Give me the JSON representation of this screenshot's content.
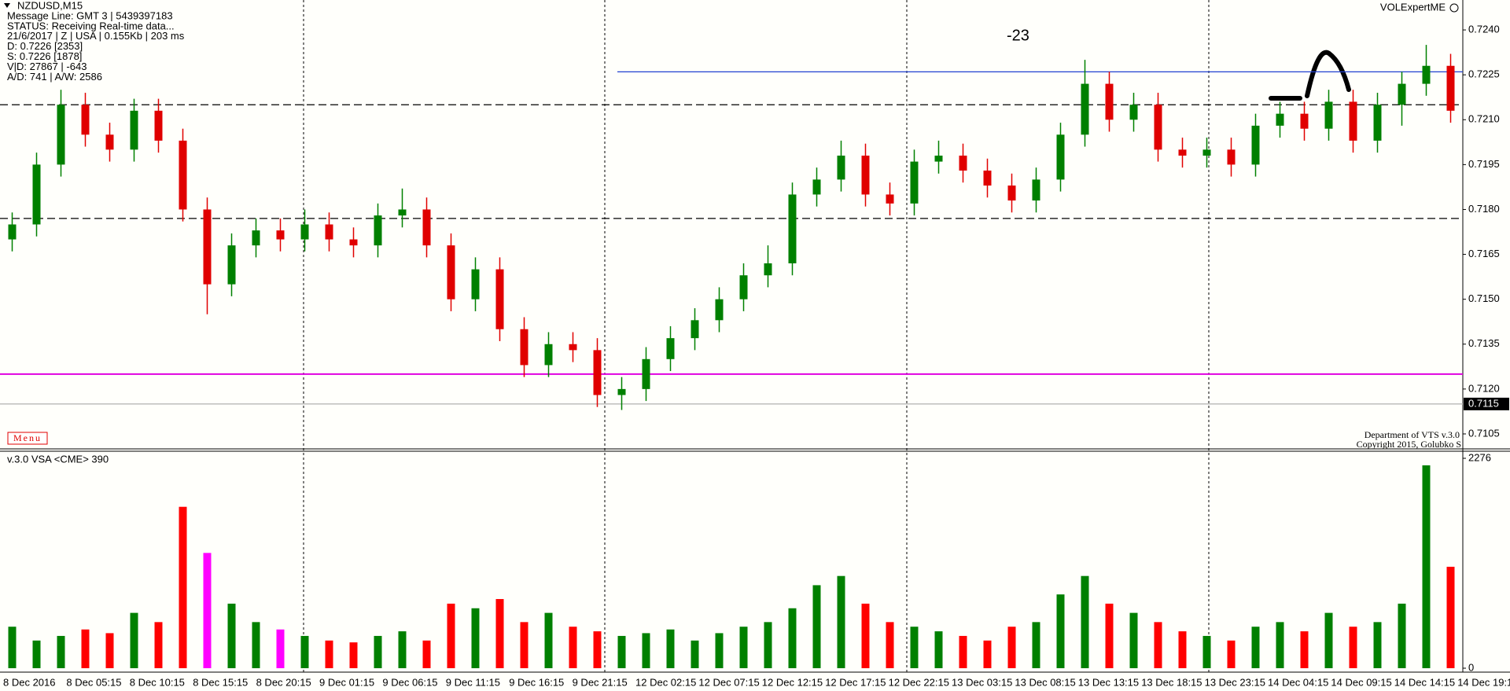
{
  "chart_data": [
    {
      "type": "candlestick",
      "title": "NZDUSD,M15",
      "info_lines": [
        "Message Line: GMT 3 | 5439397183",
        "STATUS:  Receiving Real-time data...",
        "21/6/2017 | Z | USA | 0.155Kb | 203 ms",
        "D: 0.7226  [2353]",
        "S: 0.7226  [1878]",
        "V|D: 27867 | -643",
        "A/D: 741 | A/W: 2586"
      ],
      "annotation": "-23",
      "indicator_name": "VOLExpertME",
      "menu": "Menu",
      "credits": [
        "Department of VTS  v.3.0",
        "Copyright 2015, Golubko S"
      ],
      "up_color": "#008000",
      "down_color": "#e00000",
      "open": [
        0.717,
        0.7175,
        0.7195,
        0.7215,
        0.7205,
        0.72,
        0.7213,
        0.7203,
        0.718,
        0.7155,
        0.7168,
        0.7173,
        0.717,
        0.7175,
        0.717,
        0.7168,
        0.7178,
        0.718,
        0.7168,
        0.715,
        0.716,
        0.714,
        0.7128,
        0.7135,
        0.7133,
        0.7118,
        0.712,
        0.713,
        0.7137,
        0.7143,
        0.715,
        0.7158,
        0.7162,
        0.7185,
        0.719,
        0.7198,
        0.7185,
        0.7182,
        0.7196,
        0.7198,
        0.7193,
        0.7188,
        0.7183,
        0.719,
        0.7205,
        0.7222,
        0.721,
        0.7215,
        0.72,
        0.7198,
        0.72,
        0.7195,
        0.7208,
        0.7212,
        0.7207,
        0.7216,
        0.7203,
        0.7215,
        0.7222,
        0.7228
      ],
      "high": [
        0.7179,
        0.7199,
        0.722,
        0.7219,
        0.7209,
        0.7217,
        0.7217,
        0.7207,
        0.7184,
        0.7172,
        0.7177,
        0.7177,
        0.718,
        0.7179,
        0.7174,
        0.7182,
        0.7187,
        0.7184,
        0.7172,
        0.7164,
        0.7164,
        0.7144,
        0.7139,
        0.7139,
        0.7137,
        0.7124,
        0.7134,
        0.7141,
        0.7147,
        0.7154,
        0.7162,
        0.7168,
        0.7189,
        0.7194,
        0.7203,
        0.7202,
        0.7189,
        0.72,
        0.7203,
        0.7202,
        0.7197,
        0.7192,
        0.7194,
        0.7209,
        0.723,
        0.7226,
        0.7219,
        0.7219,
        0.7204,
        0.7204,
        0.7204,
        0.7212,
        0.7216,
        0.7216,
        0.722,
        0.722,
        0.7219,
        0.7226,
        0.7235,
        0.7232
      ],
      "low": [
        0.7166,
        0.7171,
        0.7191,
        0.7201,
        0.7196,
        0.7196,
        0.7199,
        0.7176,
        0.7145,
        0.7151,
        0.7164,
        0.7166,
        0.7166,
        0.7166,
        0.7164,
        0.7164,
        0.7174,
        0.7164,
        0.7146,
        0.7146,
        0.7136,
        0.7124,
        0.7124,
        0.7129,
        0.7114,
        0.7113,
        0.7116,
        0.7126,
        0.7133,
        0.7139,
        0.7146,
        0.7154,
        0.7158,
        0.7181,
        0.7186,
        0.7181,
        0.7178,
        0.7178,
        0.7192,
        0.7189,
        0.7184,
        0.7179,
        0.7179,
        0.7186,
        0.7201,
        0.7206,
        0.7206,
        0.7196,
        0.7194,
        0.7194,
        0.7191,
        0.7191,
        0.7204,
        0.7203,
        0.7203,
        0.7199,
        0.7199,
        0.7208,
        0.7218,
        0.7209
      ],
      "close": [
        0.7175,
        0.7195,
        0.7215,
        0.7205,
        0.72,
        0.7213,
        0.7203,
        0.718,
        0.7155,
        0.7168,
        0.7173,
        0.717,
        0.7175,
        0.717,
        0.7168,
        0.7178,
        0.718,
        0.7168,
        0.715,
        0.716,
        0.714,
        0.7128,
        0.7135,
        0.7133,
        0.7118,
        0.712,
        0.713,
        0.7137,
        0.7143,
        0.715,
        0.7158,
        0.7162,
        0.7185,
        0.719,
        0.7198,
        0.7185,
        0.7182,
        0.7196,
        0.7198,
        0.7193,
        0.7188,
        0.7183,
        0.719,
        0.7205,
        0.7222,
        0.721,
        0.7215,
        0.72,
        0.7198,
        0.72,
        0.7195,
        0.7208,
        0.7212,
        0.7207,
        0.7216,
        0.7203,
        0.7215,
        0.7222,
        0.7228,
        0.7213
      ],
      "ylim": [
        0.71,
        0.725
      ],
      "yticks": [
        {
          "value": 0.724,
          "label": "0.7240"
        },
        0.7225,
        {
          "value": 0.721,
          "label": "0.7210"
        },
        0.7195,
        {
          "value": 0.718,
          "label": "0.7180"
        },
        0.7165,
        {
          "value": 0.715,
          "label": "0.7150"
        },
        0.7135,
        {
          "value": 0.712,
          "label": "0.7120"
        },
        0.7105
      ],
      "current_price": 0.7115,
      "levels": [
        {
          "value": 0.7226,
          "color": "#2040d0",
          "style": "solid"
        },
        {
          "value": 0.7215,
          "color": "#000000",
          "style": "dashed"
        },
        {
          "value": 0.7177,
          "color": "#000000",
          "style": "dashed"
        },
        {
          "value": 0.7125,
          "color": "#e000e0",
          "style": "solid"
        },
        {
          "value": 0.7115,
          "color": "#b0b0b0",
          "style": "solid"
        }
      ],
      "x_labels": [
        "8 Dec 2016",
        "8 Dec 05:15",
        "8 Dec 10:15",
        "8 Dec 15:15",
        "8 Dec 20:15",
        "9 Dec 01:15",
        "9 Dec 06:15",
        "9 Dec 11:15",
        "9 Dec 16:15",
        "9 Dec 21:15",
        "12 Dec 02:15",
        "12 Dec 07:15",
        "12 Dec 12:15",
        "12 Dec 17:15",
        "12 Dec 22:15",
        "13 Dec 03:15",
        "13 Dec 08:15",
        "13 Dec 13:15",
        "13 Dec 18:15",
        "13 Dec 23:15",
        "14 Dec 04:15",
        "14 Dec 09:15",
        "14 Dec 14:15",
        "14 Dec 19:1"
      ]
    },
    {
      "type": "bar",
      "title": "v.3.0 VSA <CME> 390",
      "values": [
        450,
        300,
        350,
        420,
        380,
        600,
        500,
        1750,
        1250,
        700,
        500,
        420,
        350,
        300,
        280,
        350,
        400,
        300,
        700,
        650,
        750,
        500,
        600,
        450,
        400,
        350,
        380,
        420,
        300,
        380,
        450,
        500,
        650,
        900,
        1000,
        700,
        500,
        450,
        400,
        350,
        300,
        450,
        500,
        800,
        1000,
        700,
        600,
        500,
        400,
        350,
        300,
        450,
        500,
        400,
        600,
        450,
        500,
        700,
        2200,
        1100
      ],
      "colors": [
        "green",
        "green",
        "green",
        "red",
        "red",
        "green",
        "red",
        "red",
        "magenta",
        "green",
        "green",
        "magenta",
        "green",
        "red",
        "red",
        "green",
        "green",
        "red",
        "red",
        "green",
        "red",
        "red",
        "green",
        "red",
        "red",
        "green",
        "green",
        "green",
        "green",
        "green",
        "green",
        "green",
        "green",
        "green",
        "green",
        "red",
        "red",
        "green",
        "green",
        "red",
        "red",
        "red",
        "green",
        "green",
        "green",
        "red",
        "green",
        "red",
        "red",
        "green",
        "red",
        "green",
        "green",
        "red",
        "green",
        "red",
        "green",
        "green",
        "green",
        "red"
      ],
      "ylim": [
        0,
        2276
      ],
      "yticks": [
        0,
        2276
      ]
    }
  ]
}
